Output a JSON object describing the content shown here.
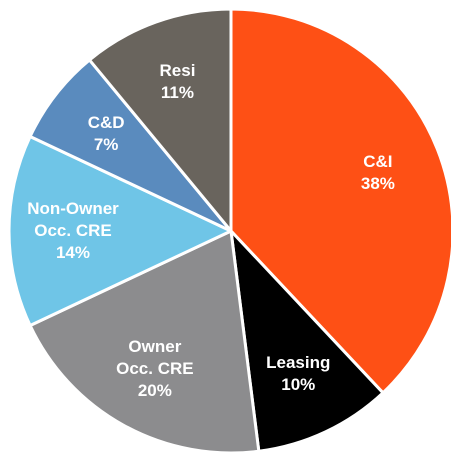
{
  "chart_data": {
    "type": "pie",
    "categories": [
      "C&I",
      "Leasing",
      "Owner\nOcc. CRE",
      "Non-Owner\nOcc. CRE",
      "C&D",
      "Resi"
    ],
    "values": [
      38,
      10,
      20,
      14,
      7,
      11
    ],
    "value_labels": [
      "38%",
      "10%",
      "20%",
      "14%",
      "7%",
      "11%"
    ],
    "colors": [
      "#fe5015",
      "#000000",
      "#8c8c8e",
      "#6fc5e7",
      "#5a8bbe",
      "#69645d"
    ]
  }
}
